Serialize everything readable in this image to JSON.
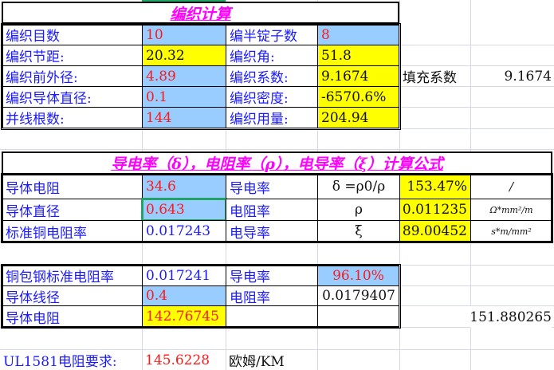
{
  "braid": {
    "title": "编织计算",
    "rows": [
      {
        "l1": "编织目数",
        "v1": "10",
        "l2": "编半锭子数",
        "v2": "8"
      },
      {
        "l1": "编织节距:",
        "v1": "20.32",
        "l2": "编织角:",
        "v2": "51.8"
      },
      {
        "l1": "编织前外径:",
        "v1": "4.89",
        "l2": "编织系数:",
        "v2": "9.1674"
      },
      {
        "l1": "编织导体直径:",
        "v1": "0.1",
        "l2": "编织密度:",
        "v2": "-6570.6%"
      },
      {
        "l1": "并线根数:",
        "v1": "144",
        "l2": "编织用量:",
        "v2": "204.94"
      }
    ],
    "fill_label": "填充系数",
    "fill_value": "9.1674"
  },
  "conduct": {
    "title": "导电率（δ），电阻率（ρ），电导率（ξ）计算公式",
    "rows": [
      {
        "l1": "导体电阻",
        "v1": "34.6",
        "l2": "导电率",
        "sym": "δ =ρ0/ρ",
        "v2": "153.47%",
        "unit": "/"
      },
      {
        "l1": "导体直径",
        "v1": "0.643",
        "l2": "电阻率",
        "sym": "ρ",
        "v2": "0.011235",
        "unit": "Ω*mm²/m"
      },
      {
        "l1": "标准铜电阻率",
        "v1": "0.017243",
        "l2": "电导率",
        "sym": "ξ",
        "v2": "89.00452",
        "unit": "s*m/mm²"
      }
    ]
  },
  "ccs": {
    "rows": [
      {
        "l1": "铜包钢标准电阻率",
        "v1": "0.017241",
        "l2": "导电率",
        "v2": "96.10%"
      },
      {
        "l1": "导体线径",
        "v1": "0.4",
        "l2": "电阻率",
        "v2": "0.0179407"
      },
      {
        "l1": "导体电阻",
        "v1": "142.76745",
        "l2": "",
        "v2": ""
      }
    ],
    "side_value": "151.880265"
  },
  "ul": {
    "label": "UL1581电阻要求:",
    "value": "145.6228",
    "unit": "欧姆/KM"
  },
  "colors": {
    "label": "#1a1aff",
    "input": "#ff1a1a",
    "title": "#ff00ff",
    "input_bg": "#99ccff",
    "result_bg": "#ffff00"
  }
}
